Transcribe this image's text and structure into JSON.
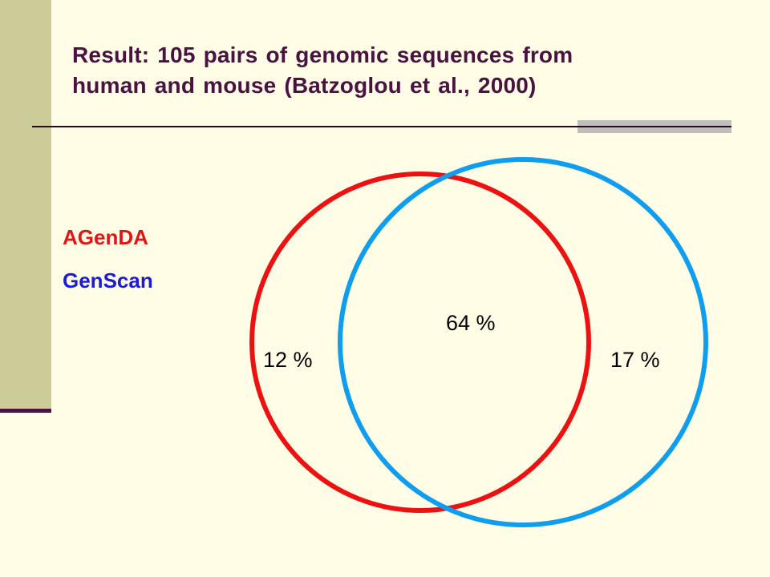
{
  "slide": {
    "title_lines": [
      "Result: 105 pairs of genomic sequences from",
      "human and mouse (Batzoglou et al., 2000)"
    ]
  },
  "legend": {
    "agenda": {
      "label": "AGenDA",
      "color": "#e31414"
    },
    "genscan": {
      "label": "GenScan",
      "color": "#1c1cd6"
    }
  },
  "venn": {
    "agenda_circle_color": "#ee1111",
    "genscan_circle_color": "#0f9df0",
    "regions": {
      "agenda_only": "12 %",
      "both": "64 %",
      "genscan_only": "17 %"
    }
  },
  "theme": {
    "background": "#fffde6",
    "sidebar": "#cccc99",
    "title_color": "#4a1242"
  }
}
